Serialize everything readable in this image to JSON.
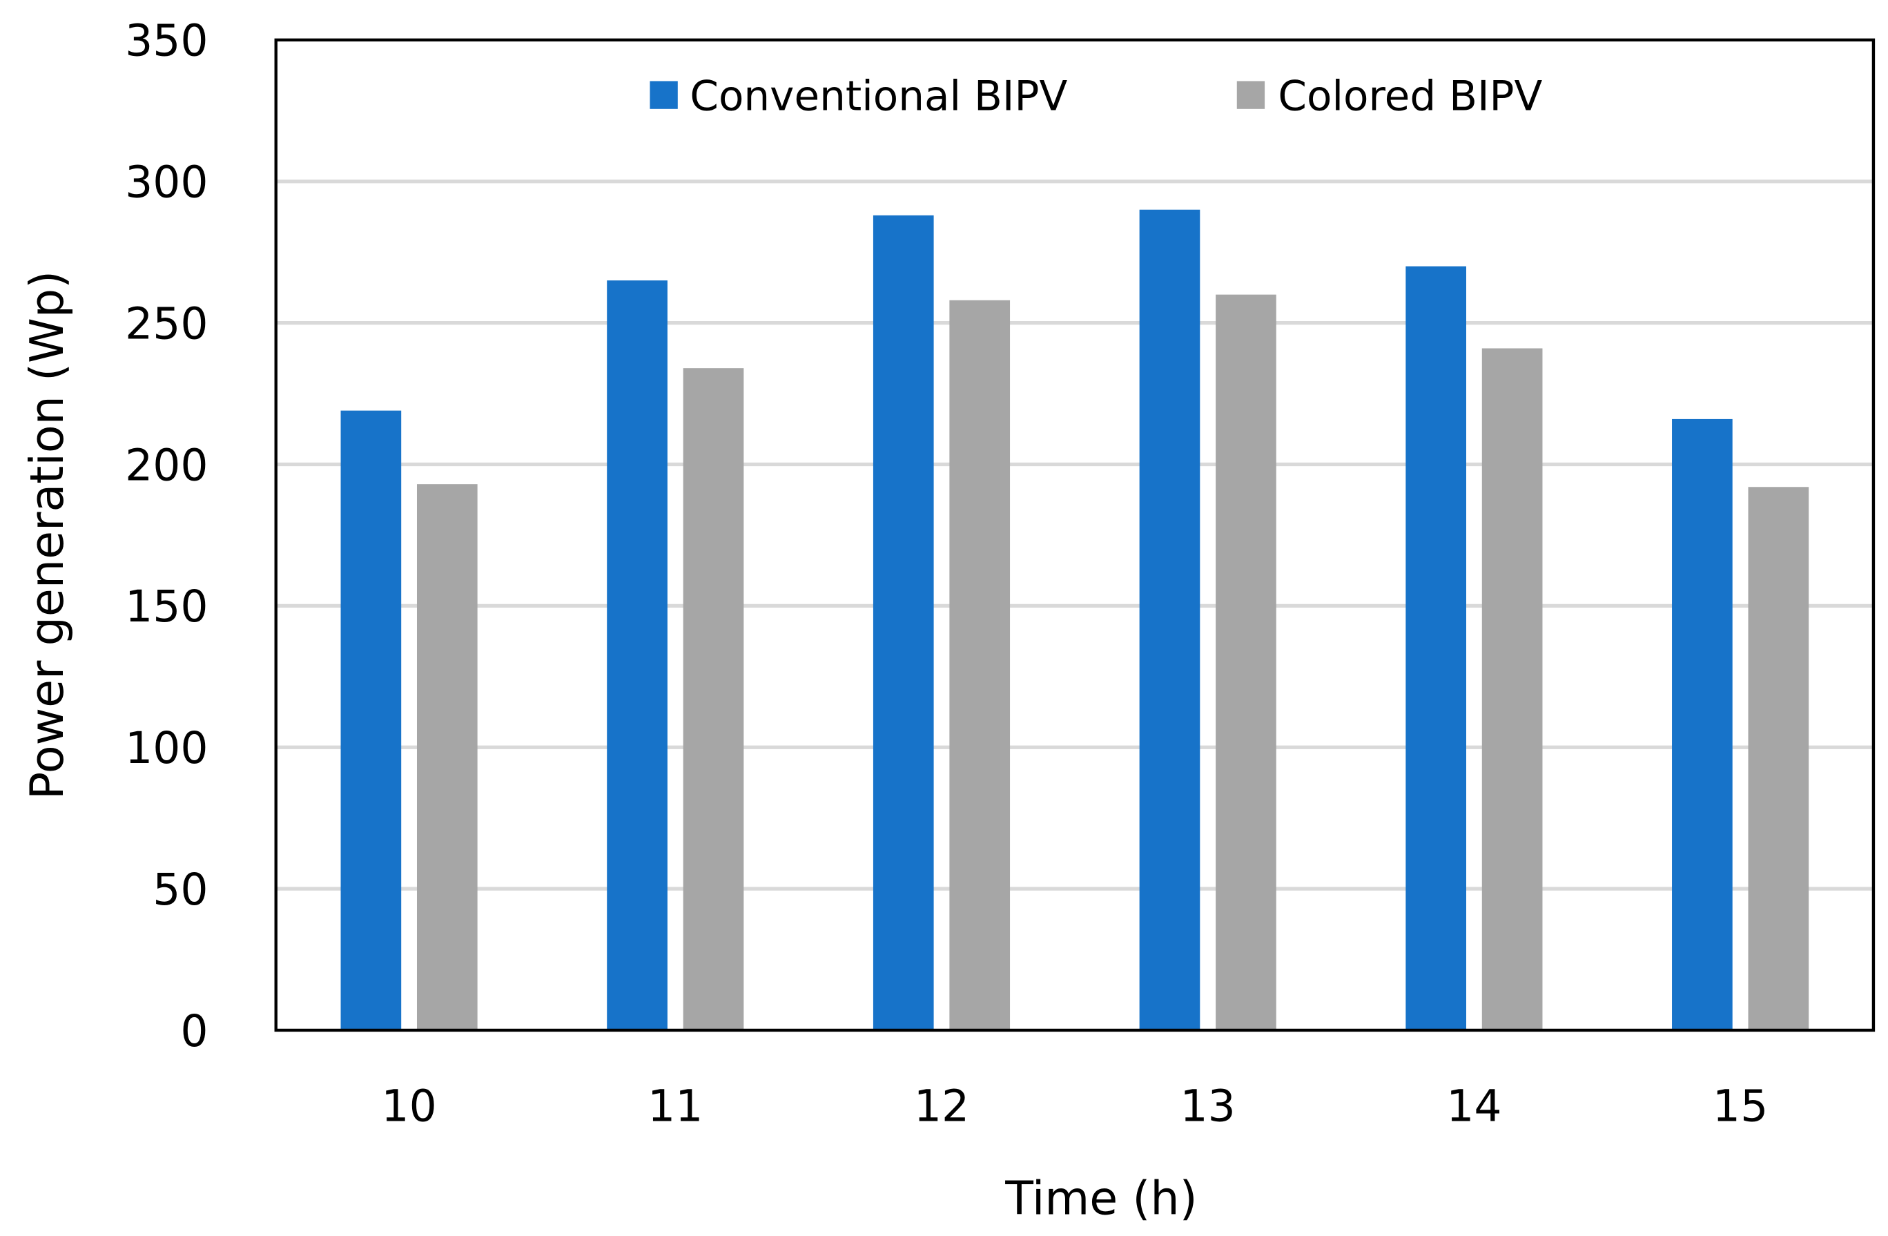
{
  "chart_data": {
    "type": "bar",
    "title": "",
    "xlabel": "Time (h)",
    "ylabel": "Power generation (Wp)",
    "categories": [
      "10",
      "11",
      "12",
      "13",
      "14",
      "15"
    ],
    "series": [
      {
        "name": "Conventional BIPV",
        "color": "#1773C9",
        "values": [
          219,
          265,
          288,
          290,
          270,
          216
        ]
      },
      {
        "name": "Colored BIPV",
        "color": "#A6A6A6",
        "values": [
          193,
          234,
          258,
          260,
          241,
          192
        ]
      }
    ],
    "ylim": [
      0,
      350
    ],
    "yticks": [
      0,
      50,
      100,
      150,
      200,
      250,
      300,
      350
    ],
    "grid": true,
    "grid_color": "#D9D9D9",
    "legend_position": "top-center"
  }
}
